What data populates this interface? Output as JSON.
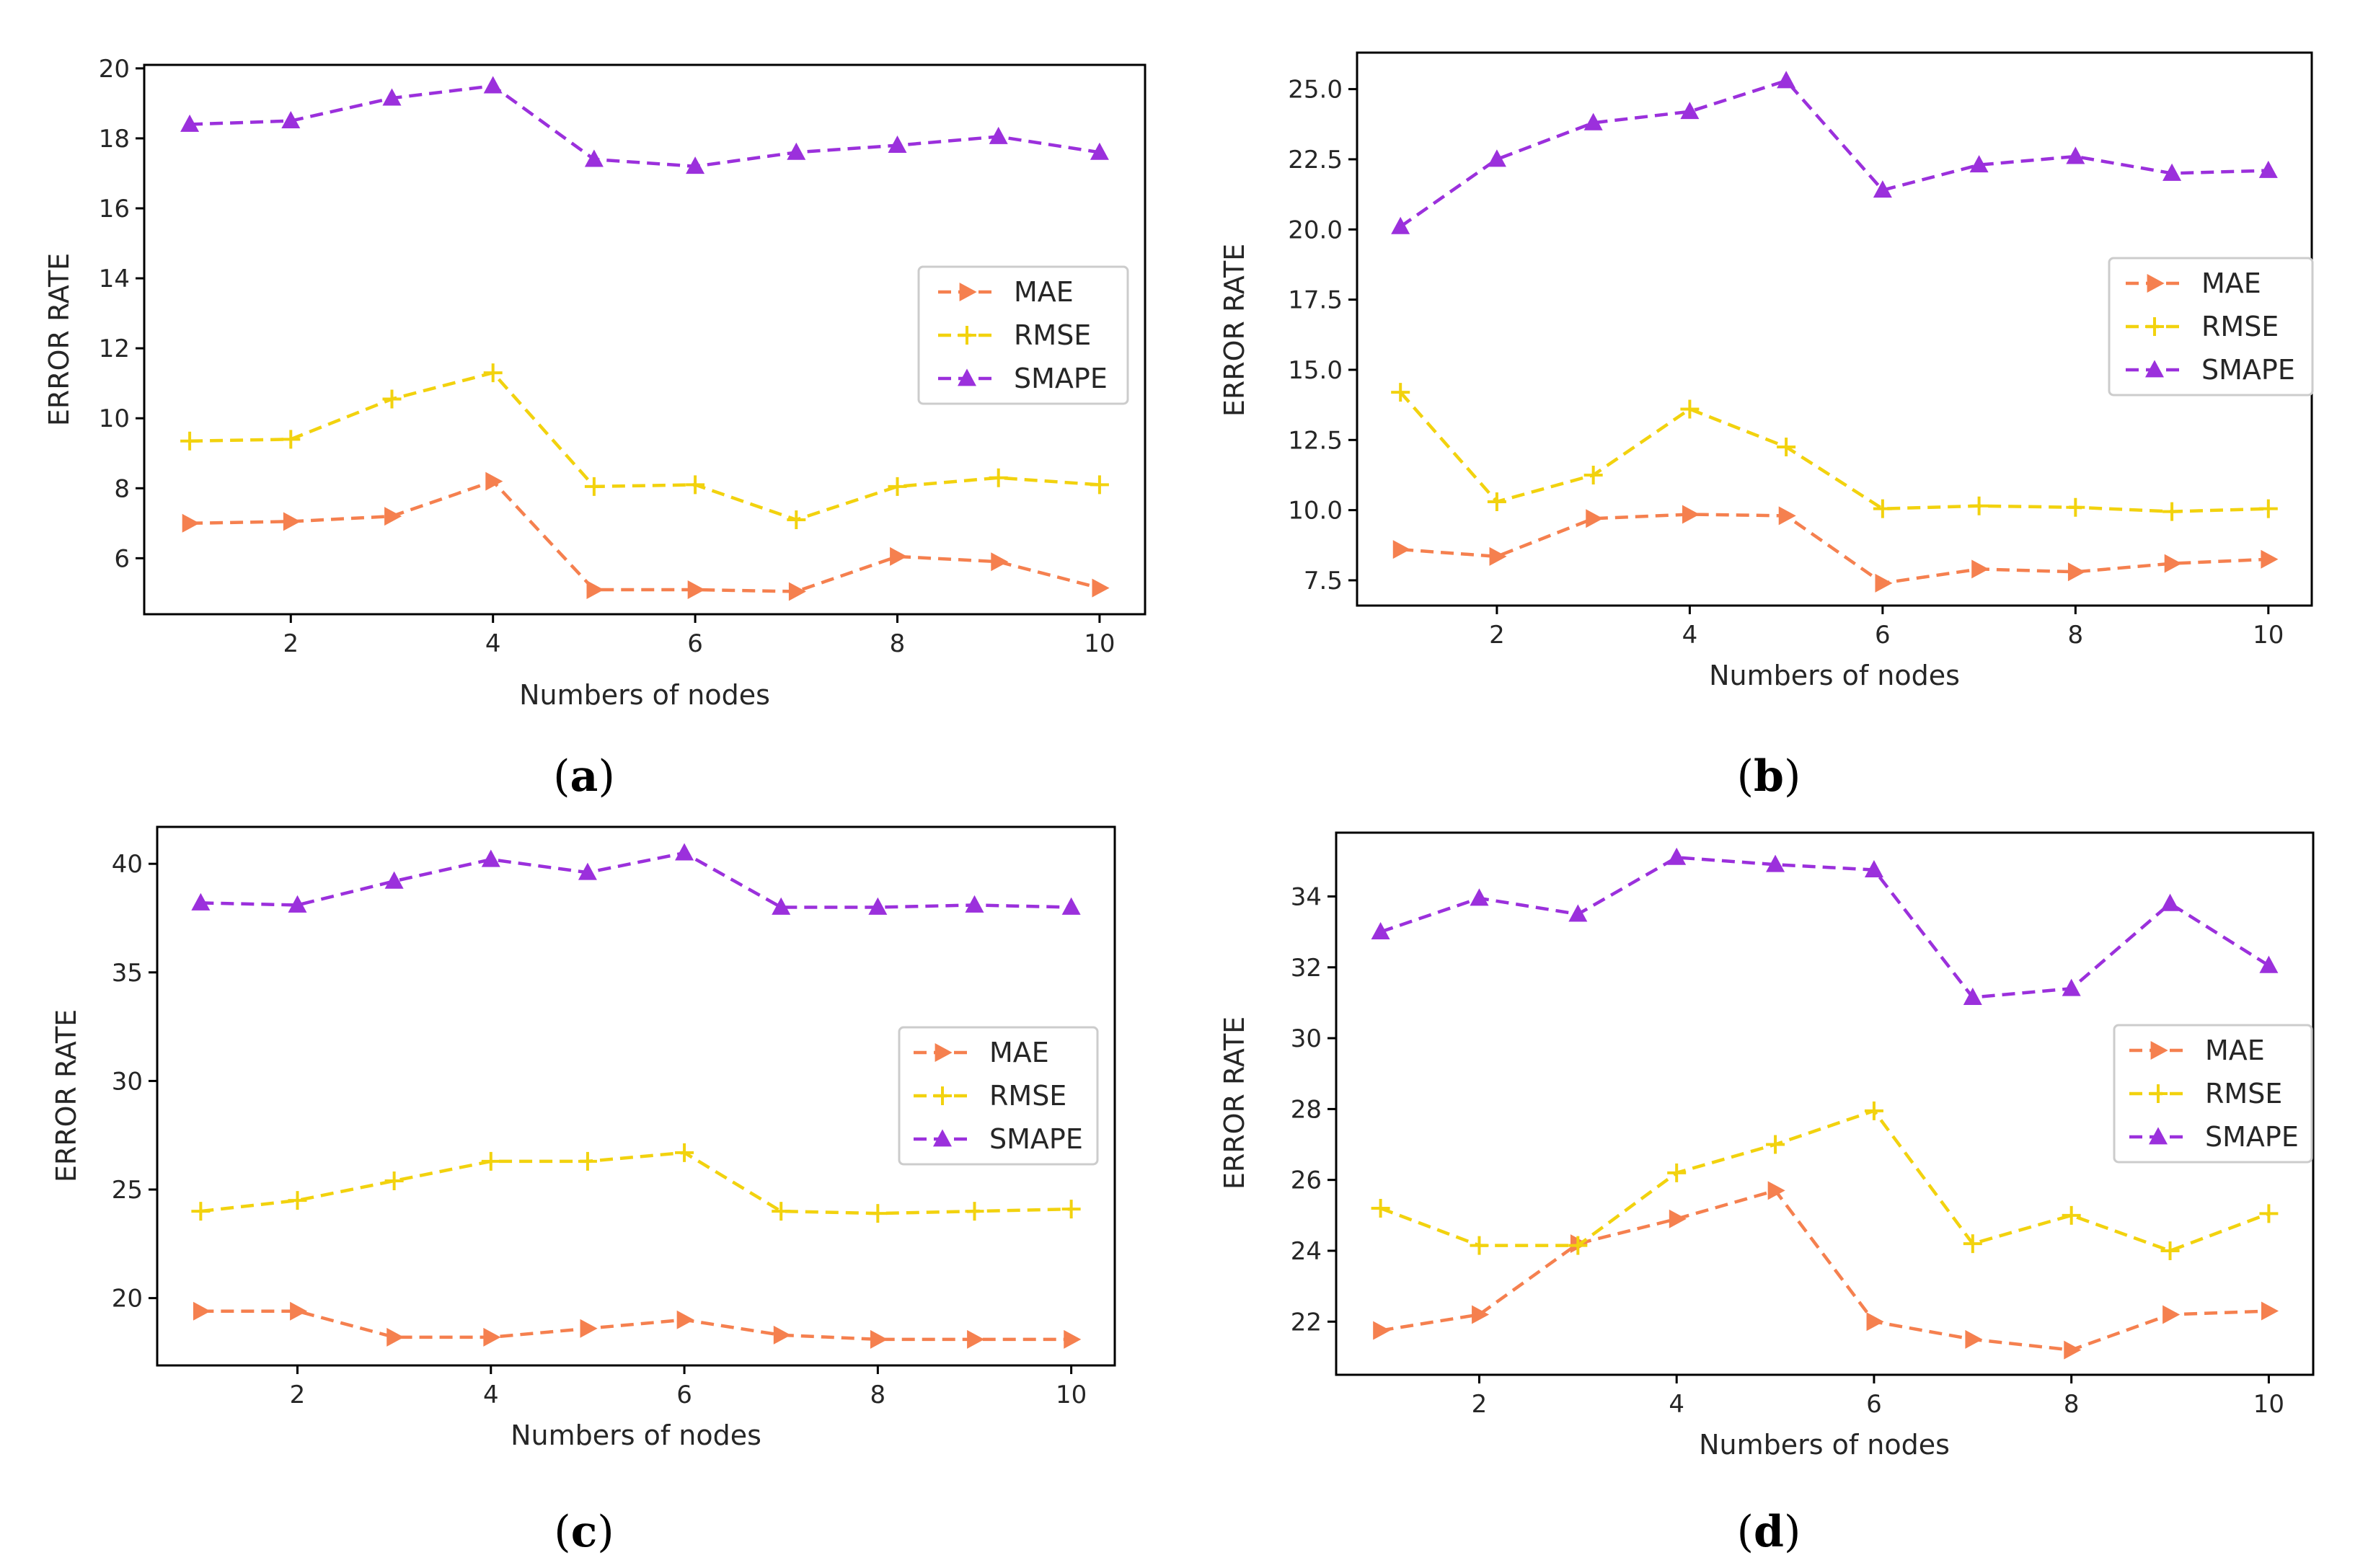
{
  "colors": {
    "MAE": "#f5804f",
    "RMSE": "#f2d20e",
    "SMAPE": "#9b30dc"
  },
  "chart_data": [
    {
      "type": "line",
      "panel": "a",
      "caption_letter": "a",
      "xlabel": "Numbers of nodes",
      "ylabel": "ERROR RATE",
      "x": [
        1,
        2,
        3,
        4,
        5,
        6,
        7,
        8,
        9,
        10
      ],
      "xlim": [
        0.55,
        10.45
      ],
      "ylim": [
        4.4,
        20.1
      ],
      "xticks": [
        2,
        4,
        6,
        8,
        10
      ],
      "xtick_labels": [
        "2",
        "4",
        "6",
        "8",
        "10"
      ],
      "yticks": [
        6,
        8,
        10,
        12,
        14,
        16,
        18,
        20
      ],
      "ytick_labels": [
        "6",
        "8",
        "10",
        "12",
        "14",
        "16",
        "18",
        "20"
      ],
      "legend": "center-right",
      "series": [
        {
          "name": "MAE",
          "marker": "triangle-right",
          "values": [
            7.0,
            7.05,
            7.2,
            8.2,
            5.1,
            5.1,
            5.05,
            6.05,
            5.9,
            5.15
          ]
        },
        {
          "name": "RMSE",
          "marker": "plus",
          "values": [
            9.35,
            9.4,
            10.55,
            11.3,
            8.05,
            8.1,
            7.1,
            8.05,
            8.3,
            8.1
          ]
        },
        {
          "name": "SMAPE",
          "marker": "triangle-up",
          "values": [
            18.4,
            18.5,
            19.15,
            19.5,
            17.4,
            17.2,
            17.6,
            17.8,
            18.05,
            17.6
          ]
        }
      ]
    },
    {
      "type": "line",
      "panel": "b",
      "caption_letter": "b",
      "xlabel": "Numbers of nodes",
      "ylabel": "ERROR RATE",
      "x": [
        1,
        2,
        3,
        4,
        5,
        6,
        7,
        8,
        9,
        10
      ],
      "xlim": [
        0.55,
        10.45
      ],
      "ylim": [
        6.6,
        26.3
      ],
      "xticks": [
        2,
        4,
        6,
        8,
        10
      ],
      "xtick_labels": [
        "2",
        "4",
        "6",
        "8",
        "10"
      ],
      "yticks": [
        7.5,
        10.0,
        12.5,
        15.0,
        17.5,
        20.0,
        22.5,
        25.0
      ],
      "ytick_labels": [
        "7.5",
        "10.0",
        "12.5",
        "15.0",
        "17.5",
        "20.0",
        "22.5",
        "25.0"
      ],
      "legend": "center-right",
      "series": [
        {
          "name": "MAE",
          "marker": "triangle-right",
          "values": [
            8.6,
            8.35,
            9.7,
            9.85,
            9.8,
            7.4,
            7.9,
            7.8,
            8.1,
            8.25
          ]
        },
        {
          "name": "RMSE",
          "marker": "plus",
          "values": [
            14.2,
            10.3,
            11.25,
            13.6,
            12.25,
            10.05,
            10.15,
            10.1,
            9.95,
            10.05
          ]
        },
        {
          "name": "SMAPE",
          "marker": "triangle-up",
          "values": [
            20.1,
            22.5,
            23.8,
            24.2,
            25.3,
            21.4,
            22.3,
            22.6,
            22.0,
            22.1
          ]
        }
      ]
    },
    {
      "type": "line",
      "panel": "c",
      "caption_letter": "c",
      "xlabel": "Numbers of nodes",
      "ylabel": "ERROR RATE",
      "x": [
        1,
        2,
        3,
        4,
        5,
        6,
        7,
        8,
        9,
        10
      ],
      "xlim": [
        0.55,
        10.45
      ],
      "ylim": [
        16.9,
        41.7
      ],
      "xticks": [
        2,
        4,
        6,
        8,
        10
      ],
      "xtick_labels": [
        "2",
        "4",
        "6",
        "8",
        "10"
      ],
      "yticks": [
        20,
        25,
        30,
        35,
        40
      ],
      "ytick_labels": [
        "20",
        "25",
        "30",
        "35",
        "40"
      ],
      "legend": "center-right",
      "series": [
        {
          "name": "MAE",
          "marker": "triangle-right",
          "values": [
            19.4,
            19.4,
            18.2,
            18.2,
            18.6,
            19.0,
            18.3,
            18.1,
            18.1,
            18.1
          ]
        },
        {
          "name": "RMSE",
          "marker": "plus",
          "values": [
            24.0,
            24.5,
            25.4,
            26.3,
            26.3,
            26.7,
            24.0,
            23.9,
            24.0,
            24.1
          ]
        },
        {
          "name": "SMAPE",
          "marker": "triangle-up",
          "values": [
            38.2,
            38.1,
            39.2,
            40.2,
            39.6,
            40.5,
            38.0,
            38.0,
            38.1,
            38.0
          ]
        }
      ]
    },
    {
      "type": "line",
      "panel": "d",
      "caption_letter": "d",
      "xlabel": "Numbers of nodes",
      "ylabel": "ERROR RATE",
      "x": [
        1,
        2,
        3,
        4,
        5,
        6,
        7,
        8,
        9,
        10
      ],
      "xlim": [
        0.55,
        10.45
      ],
      "ylim": [
        20.5,
        35.8
      ],
      "xticks": [
        2,
        4,
        6,
        8,
        10
      ],
      "xtick_labels": [
        "2",
        "4",
        "6",
        "8",
        "10"
      ],
      "yticks": [
        22,
        24,
        26,
        28,
        30,
        32,
        34
      ],
      "ytick_labels": [
        "22",
        "24",
        "26",
        "28",
        "30",
        "32",
        "34"
      ],
      "legend": "center-right",
      "series": [
        {
          "name": "MAE",
          "marker": "triangle-right",
          "values": [
            21.75,
            22.2,
            24.2,
            24.9,
            25.7,
            22.0,
            21.5,
            21.2,
            22.2,
            22.3
          ]
        },
        {
          "name": "RMSE",
          "marker": "plus",
          "values": [
            25.2,
            24.15,
            24.15,
            26.2,
            27.0,
            27.95,
            24.2,
            25.0,
            24.0,
            25.05
          ]
        },
        {
          "name": "SMAPE",
          "marker": "triangle-up",
          "values": [
            33.0,
            33.95,
            33.5,
            35.1,
            34.9,
            34.75,
            31.15,
            31.4,
            33.8,
            32.05
          ]
        }
      ]
    }
  ]
}
